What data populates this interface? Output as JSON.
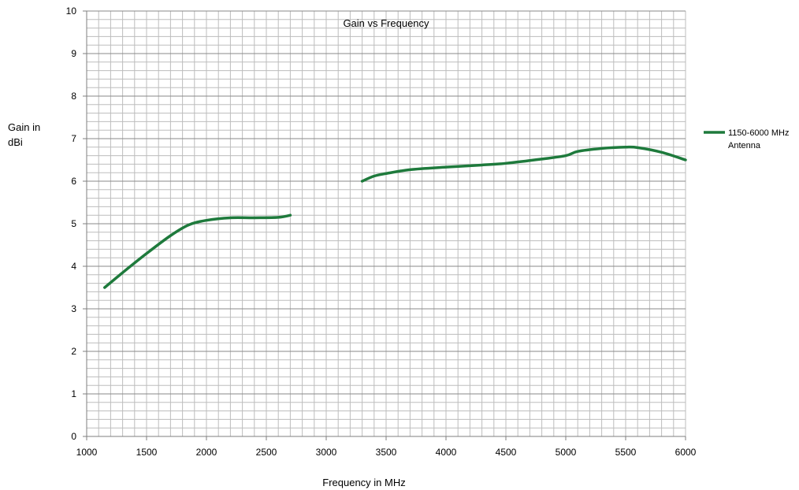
{
  "chart_data": {
    "type": "line",
    "title": "Gain vs Frequency",
    "xlabel": "Frequency in MHz",
    "ylabel_lines": [
      "Gain in",
      "dBi"
    ],
    "xlim": [
      1000,
      6000
    ],
    "ylim": [
      0,
      10
    ],
    "x_ticks": [
      1000,
      1500,
      2000,
      2500,
      3000,
      3500,
      4000,
      4500,
      5000,
      5500,
      6000
    ],
    "y_ticks": [
      0,
      1,
      2,
      3,
      4,
      5,
      6,
      7,
      8,
      9,
      10
    ],
    "grid": true,
    "legend_position": "right",
    "series": [
      {
        "name": "1150-6000 MHz Antenna",
        "legend_lines": [
          "1150-6000 MHz",
          "Antenna"
        ],
        "color": "#1e7a3c",
        "segments": [
          [
            [
              1150,
              3.5
            ],
            [
              1300,
              3.85
            ],
            [
              1500,
              4.3
            ],
            [
              1700,
              4.72
            ],
            [
              1850,
              4.97
            ],
            [
              2000,
              5.08
            ],
            [
              2200,
              5.14
            ],
            [
              2400,
              5.14
            ],
            [
              2600,
              5.15
            ],
            [
              2700,
              5.2
            ]
          ],
          [
            [
              3300,
              6.0
            ],
            [
              3400,
              6.12
            ],
            [
              3500,
              6.18
            ],
            [
              3700,
              6.27
            ],
            [
              4000,
              6.33
            ],
            [
              4300,
              6.38
            ],
            [
              4500,
              6.42
            ],
            [
              4800,
              6.52
            ],
            [
              5000,
              6.6
            ],
            [
              5100,
              6.7
            ],
            [
              5300,
              6.77
            ],
            [
              5500,
              6.8
            ],
            [
              5600,
              6.79
            ],
            [
              5800,
              6.68
            ],
            [
              6000,
              6.5
            ]
          ]
        ]
      }
    ]
  }
}
